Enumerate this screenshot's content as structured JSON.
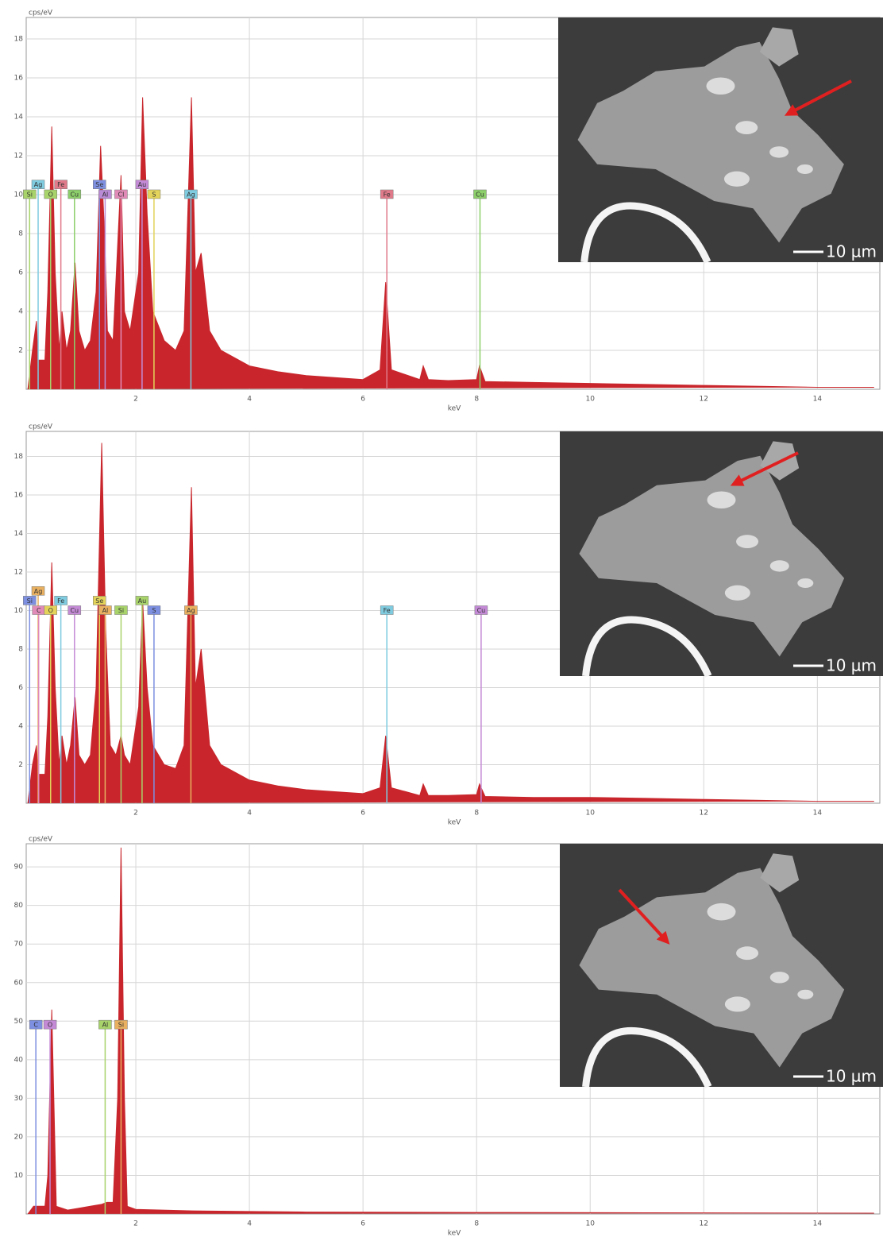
{
  "chart_data": [
    {
      "type": "area",
      "y_label": "cps/eV",
      "x_label": "keV",
      "color": "#c8262c",
      "xlim": [
        0.07,
        15.1
      ],
      "ylim": [
        0,
        19.1
      ],
      "xticks": [
        2,
        4,
        6,
        8,
        10,
        12,
        14
      ],
      "yticks": [
        2,
        4,
        6,
        8,
        10,
        12,
        14,
        16,
        18
      ],
      "grid": true,
      "x": [
        0.1,
        0.18,
        0.25,
        0.28,
        0.4,
        0.45,
        0.52,
        0.58,
        0.65,
        0.7,
        0.78,
        0.85,
        0.93,
        1.0,
        1.1,
        1.2,
        1.3,
        1.38,
        1.45,
        1.5,
        1.6,
        1.74,
        1.8,
        1.9,
        2.05,
        2.12,
        2.2,
        2.3,
        2.5,
        2.7,
        2.85,
        2.98,
        3.05,
        3.15,
        3.3,
        3.5,
        4.0,
        4.5,
        5.0,
        5.5,
        6.0,
        6.3,
        6.4,
        6.5,
        7.0,
        7.06,
        7.15,
        7.5,
        8.0,
        8.05,
        8.15,
        9,
        10,
        11,
        12,
        13,
        14,
        15
      ],
      "values": [
        0,
        2,
        3.5,
        1.5,
        1.5,
        5,
        13.5,
        6,
        2,
        4,
        2,
        3,
        6.5,
        3,
        2,
        2.5,
        5,
        12.5,
        8,
        3,
        2.5,
        11,
        4,
        3,
        6,
        15,
        9,
        4,
        2.5,
        2,
        3,
        15,
        6,
        7,
        3,
        2,
        1.2,
        0.9,
        0.7,
        0.6,
        0.5,
        1,
        5.5,
        1,
        0.5,
        1.2,
        0.5,
        0.45,
        0.5,
        1.2,
        0.4,
        0.35,
        0.3,
        0.25,
        0.2,
        0.15,
        0.1,
        0.1
      ],
      "markers": [
        {
          "label": "Si",
          "x": 0.13,
          "y": 10,
          "color": "#a8d36a"
        },
        {
          "label": "Ag",
          "x": 0.28,
          "y": 10.5,
          "color": "#7fcbe0"
        },
        {
          "label": "O",
          "x": 0.5,
          "y": 10,
          "color": "#a8d36a"
        },
        {
          "label": "Fe",
          "x": 0.68,
          "y": 10.5,
          "color": "#e07a8a"
        },
        {
          "label": "Cu",
          "x": 0.92,
          "y": 10,
          "color": "#8ccf6a"
        },
        {
          "label": "Se",
          "x": 1.36,
          "y": 10.5,
          "color": "#7d8fe0"
        },
        {
          "label": "Al",
          "x": 1.46,
          "y": 10,
          "color": "#b98ad6"
        },
        {
          "label": "Cl",
          "x": 1.74,
          "y": 10,
          "color": "#e08ab8"
        },
        {
          "label": "Au",
          "x": 2.11,
          "y": 10.5,
          "color": "#c48ad6"
        },
        {
          "label": "S",
          "x": 2.32,
          "y": 10,
          "color": "#e3d35a"
        },
        {
          "label": "Ag",
          "x": 2.97,
          "y": 10,
          "color": "#7fcbe0"
        },
        {
          "label": "Fe",
          "x": 6.42,
          "y": 10,
          "color": "#e07a8a"
        },
        {
          "label": "Cu",
          "x": 8.06,
          "y": 10,
          "color": "#8ccf6a"
        }
      ],
      "inset": {
        "scale_bar": "10 µm"
      }
    },
    {
      "type": "area",
      "y_label": "cps/eV",
      "x_label": "keV",
      "color": "#c8262c",
      "xlim": [
        0.07,
        15.1
      ],
      "ylim": [
        0,
        19.3
      ],
      "xticks": [
        2,
        4,
        6,
        8,
        10,
        12,
        14
      ],
      "yticks": [
        2,
        4,
        6,
        8,
        10,
        12,
        14,
        16,
        18
      ],
      "grid": true,
      "x": [
        0.1,
        0.18,
        0.25,
        0.28,
        0.4,
        0.45,
        0.52,
        0.58,
        0.65,
        0.7,
        0.78,
        0.85,
        0.93,
        1.0,
        1.1,
        1.2,
        1.3,
        1.4,
        1.47,
        1.55,
        1.65,
        1.74,
        1.8,
        1.9,
        2.05,
        2.12,
        2.2,
        2.3,
        2.5,
        2.7,
        2.85,
        2.98,
        3.05,
        3.15,
        3.3,
        3.5,
        4.0,
        4.5,
        5.0,
        5.5,
        6.0,
        6.3,
        6.4,
        6.5,
        7.0,
        7.06,
        7.15,
        7.5,
        8.0,
        8.05,
        8.15,
        9,
        10,
        11,
        12,
        13,
        14,
        15
      ],
      "values": [
        0,
        2,
        3,
        1.5,
        1.5,
        4.5,
        12.5,
        6,
        2,
        3.5,
        2,
        3,
        5.5,
        2.5,
        2,
        2.5,
        6,
        18.7,
        9,
        3,
        2.5,
        3.5,
        2.5,
        2,
        5,
        10.5,
        6,
        3,
        2,
        1.8,
        3,
        16.4,
        6,
        8,
        3,
        2,
        1.2,
        0.9,
        0.7,
        0.6,
        0.5,
        0.8,
        3.5,
        0.8,
        0.4,
        1.0,
        0.4,
        0.4,
        0.45,
        1.0,
        0.35,
        0.3,
        0.3,
        0.25,
        0.2,
        0.15,
        0.1,
        0.1
      ],
      "markers": [
        {
          "label": "Si",
          "x": 0.13,
          "y": 10.5,
          "color": "#7d8fe0"
        },
        {
          "label": "Ag",
          "x": 0.28,
          "y": 11,
          "color": "#e8b060"
        },
        {
          "label": "C",
          "x": 0.29,
          "y": 10,
          "color": "#e08ab8"
        },
        {
          "label": "O",
          "x": 0.5,
          "y": 10,
          "color": "#e3d35a"
        },
        {
          "label": "Fe",
          "x": 0.68,
          "y": 10.5,
          "color": "#7fcbe0"
        },
        {
          "label": "Cu",
          "x": 0.92,
          "y": 10,
          "color": "#c48ad6"
        },
        {
          "label": "Se",
          "x": 1.36,
          "y": 10.5,
          "color": "#e3d35a"
        },
        {
          "label": "Al",
          "x": 1.46,
          "y": 10,
          "color": "#e8b060"
        },
        {
          "label": "Si",
          "x": 1.74,
          "y": 10,
          "color": "#a8d36a"
        },
        {
          "label": "Au",
          "x": 2.11,
          "y": 10.5,
          "color": "#a8d36a"
        },
        {
          "label": "S",
          "x": 2.32,
          "y": 10,
          "color": "#7d8fe0"
        },
        {
          "label": "Ag",
          "x": 2.97,
          "y": 10,
          "color": "#e8b060"
        },
        {
          "label": "Fe",
          "x": 6.42,
          "y": 10,
          "color": "#7fcbe0"
        },
        {
          "label": "Cu",
          "x": 8.08,
          "y": 10,
          "color": "#c48ad6"
        }
      ],
      "inset": {
        "scale_bar": "10 µm"
      }
    },
    {
      "type": "area",
      "y_label": "cps/eV",
      "x_label": "keV",
      "color": "#c8262c",
      "xlim": [
        0.07,
        15.1
      ],
      "ylim": [
        0,
        96
      ],
      "xticks": [
        2,
        4,
        6,
        8,
        10,
        12,
        14
      ],
      "yticks": [
        10,
        20,
        30,
        40,
        50,
        60,
        70,
        80,
        90
      ],
      "grid": true,
      "x": [
        0.1,
        0.2,
        0.28,
        0.4,
        0.45,
        0.52,
        0.6,
        0.8,
        1.0,
        1.2,
        1.4,
        1.49,
        1.6,
        1.68,
        1.74,
        1.8,
        1.85,
        2.0,
        3,
        5,
        8,
        11,
        15
      ],
      "values": [
        0,
        2,
        2,
        2,
        10,
        53,
        2,
        1,
        1.5,
        2,
        2.5,
        3,
        3,
        30,
        95,
        30,
        2,
        1.2,
        0.8,
        0.5,
        0.4,
        0.3,
        0.2
      ],
      "markers": [
        {
          "label": "C",
          "x": 0.24,
          "y": 49,
          "color": "#7d8fe0"
        },
        {
          "label": "O",
          "x": 0.49,
          "y": 49,
          "color": "#c48ad6"
        },
        {
          "label": "Al",
          "x": 1.46,
          "y": 49,
          "color": "#a8d36a"
        },
        {
          "label": "Si",
          "x": 1.74,
          "y": 49,
          "color": "#e8b060"
        }
      ],
      "inset": {
        "scale_bar": "10 µm"
      }
    }
  ]
}
